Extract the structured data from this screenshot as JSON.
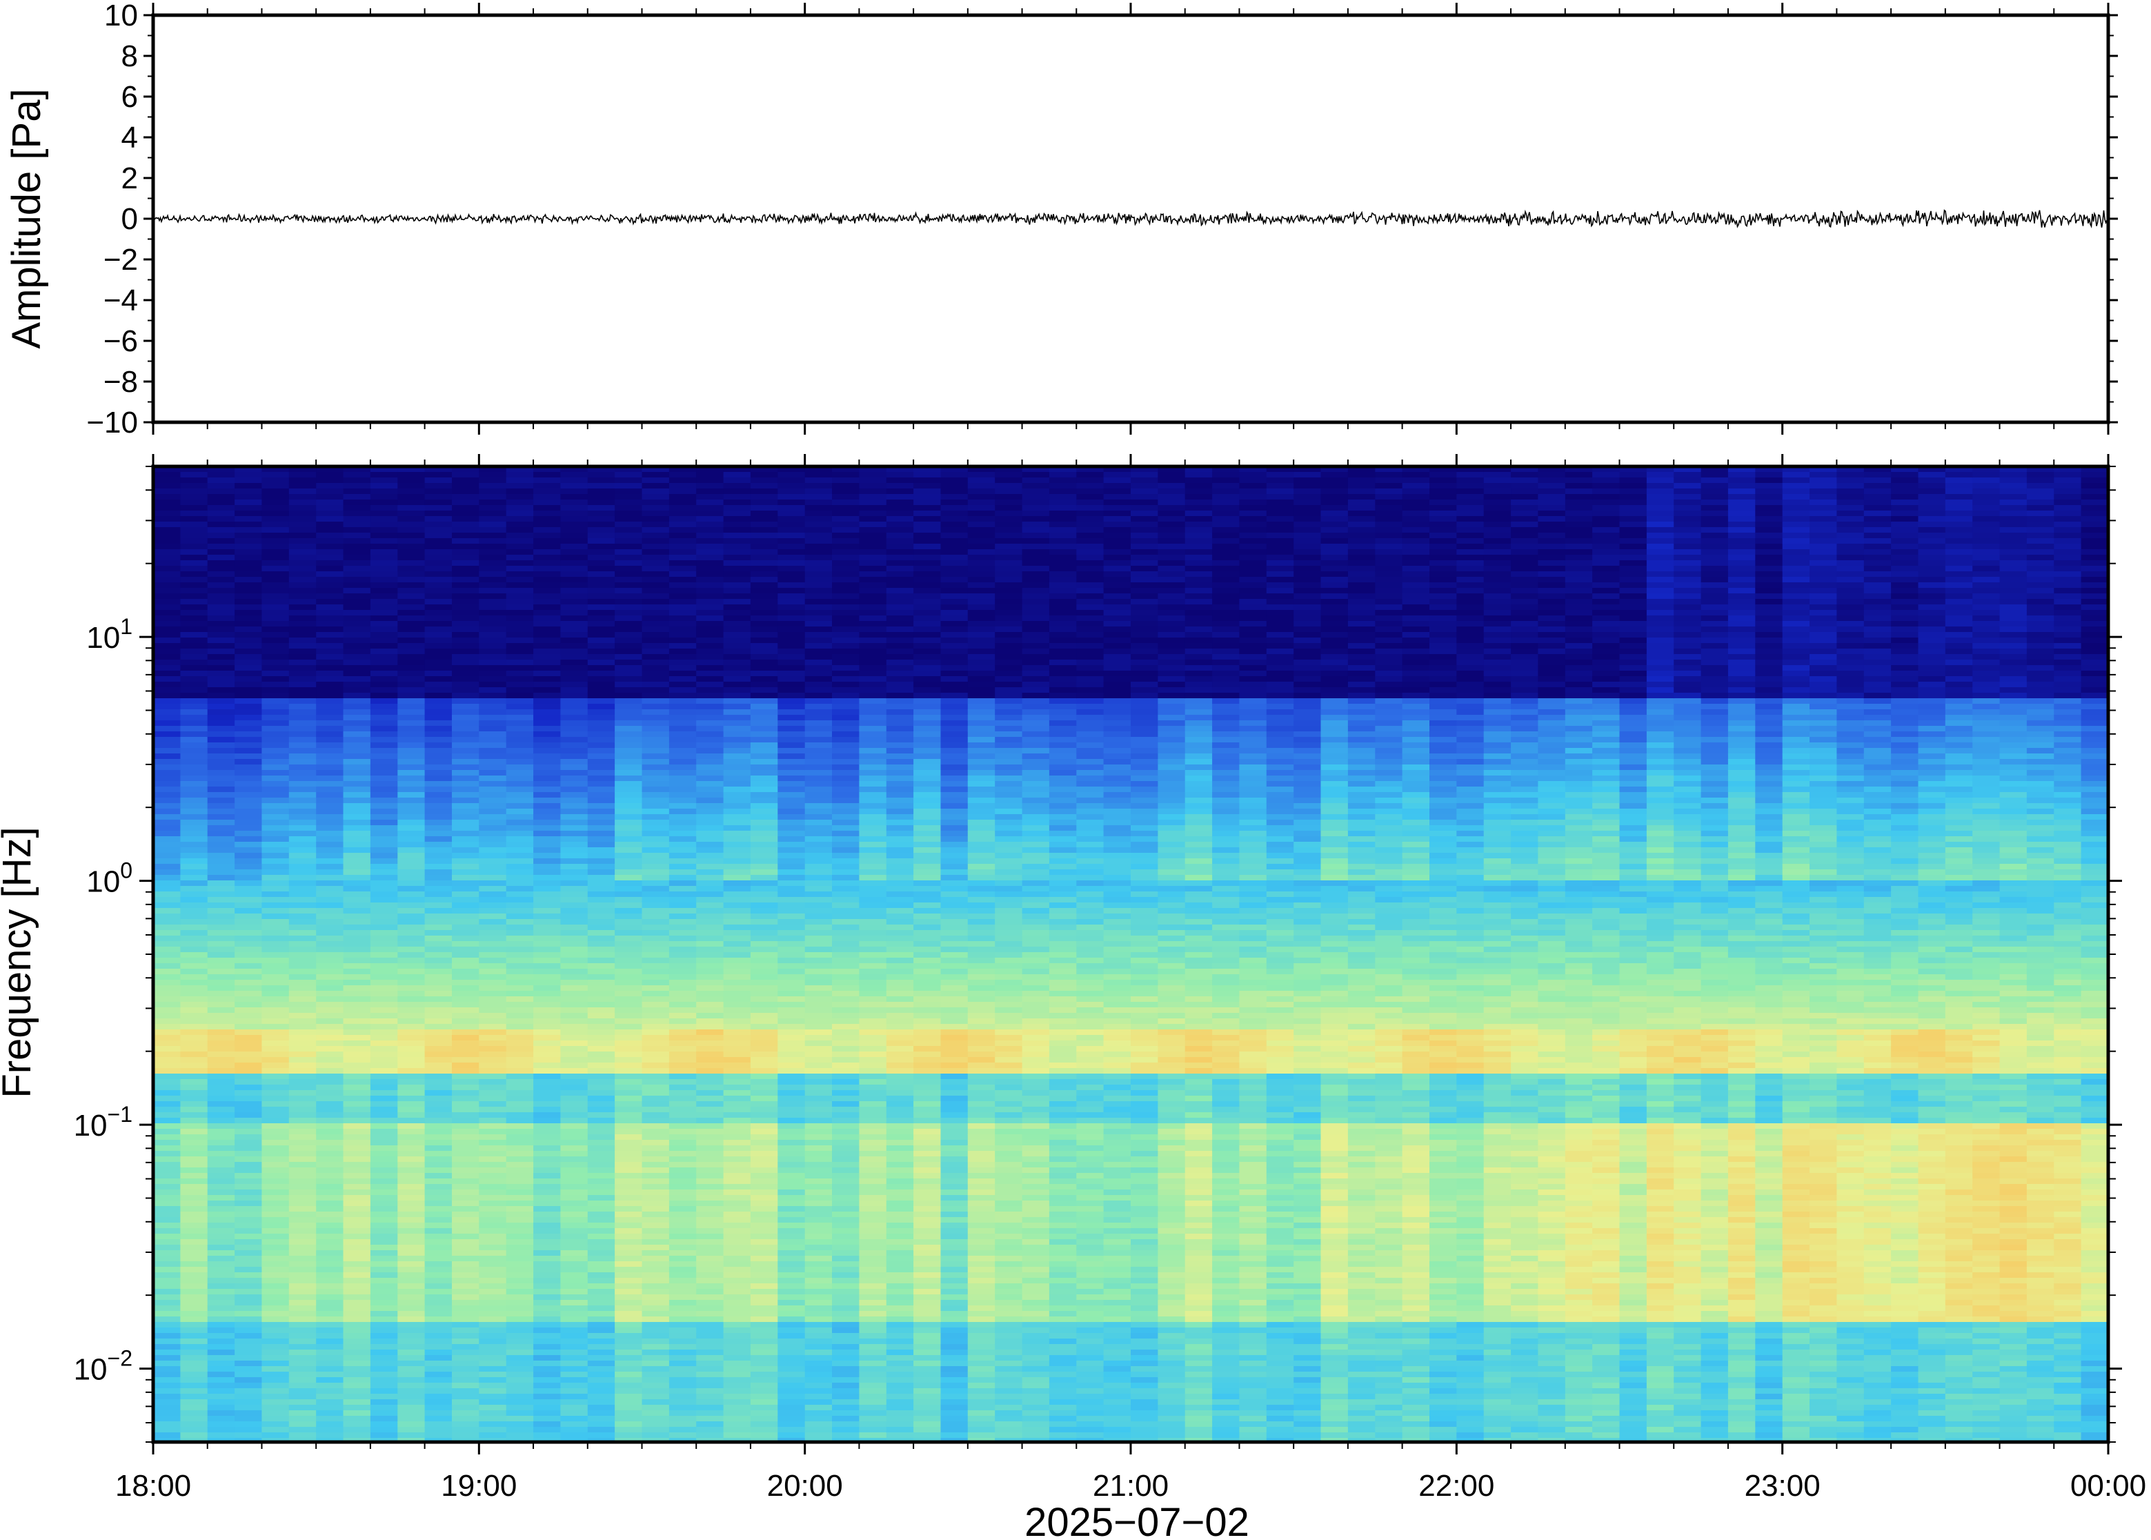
{
  "chart_data": [
    {
      "type": "line",
      "panel": "waveform",
      "ylabel": "Amplitude [Pa]",
      "ylim": [
        -10,
        10
      ],
      "yticks": [
        10,
        8,
        6,
        4,
        2,
        0,
        -2,
        -4,
        -6,
        -8,
        -10
      ],
      "ytick_labels": [
        "10",
        "8",
        "6",
        "4",
        "2",
        "0",
        "−2",
        "−4",
        "−6",
        "−8",
        "−10"
      ],
      "xlim": [
        "18:00",
        "00:00"
      ],
      "series": [
        {
          "x_start": "18:00",
          "x_end": "00:00",
          "mean": 0,
          "peak_amplitude": 0.4,
          "color": "#000000"
        }
      ]
    },
    {
      "type": "heatmap",
      "panel": "spectrogram",
      "ylabel": "Frequency [Hz]",
      "yscale": "log",
      "ylim": [
        0.005,
        50
      ],
      "ytick_labels": [
        {
          "base": "10",
          "exp": "1",
          "value": 10
        },
        {
          "base": "10",
          "exp": "0",
          "value": 1
        },
        {
          "base": "10",
          "exp": "−1",
          "value": 0.1
        },
        {
          "base": "10",
          "exp": "−2",
          "value": 0.01
        }
      ],
      "xlabel": "2025−07−02",
      "xtick_labels": [
        "18:00",
        "19:00",
        "20:00",
        "21:00",
        "22:00",
        "23:00",
        "00:00"
      ],
      "colormap": [
        "#0b0475",
        "#1428c8",
        "#2e6ee6",
        "#40c8f0",
        "#90ecb0",
        "#e8f090",
        "#f8c860",
        "#f49050"
      ],
      "features": {
        "dominant_band_hz": [
          0.15,
          0.25
        ],
        "quiet_above_hz": 5,
        "elevated_low_frequency_after": "21:30"
      }
    }
  ]
}
